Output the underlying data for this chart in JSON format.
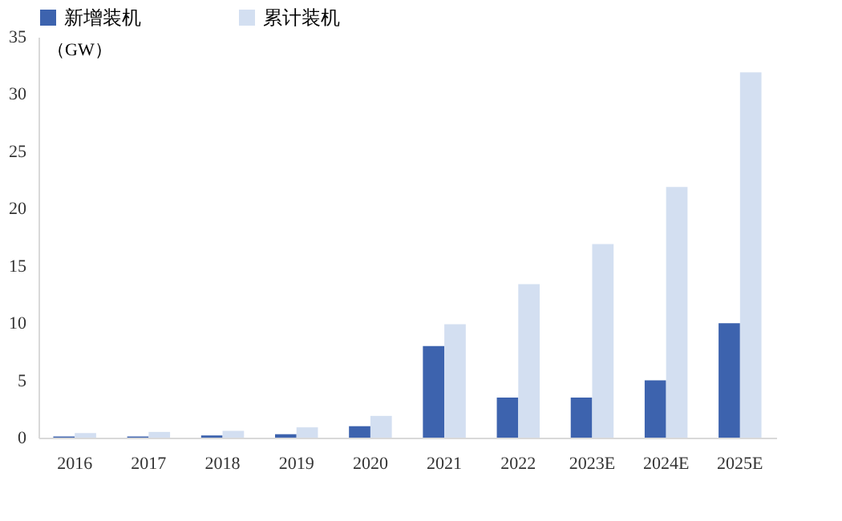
{
  "chart_data": {
    "type": "bar",
    "ylabel": "（GW）",
    "categories": [
      "2016",
      "2017",
      "2018",
      "2019",
      "2020",
      "2021",
      "2022",
      "2023E",
      "2024E",
      "2025E"
    ],
    "series": [
      {
        "name": "新增装机",
        "color": "#3d63ae",
        "values": [
          0.1,
          0.1,
          0.2,
          0.3,
          1.0,
          8,
          3.5,
          3.5,
          5,
          10
        ]
      },
      {
        "name": "累计装机",
        "color": "#d3dff1",
        "values": [
          0.4,
          0.5,
          0.6,
          0.9,
          1.9,
          9.9,
          13.4,
          16.9,
          21.9,
          31.9
        ]
      }
    ],
    "ylim": [
      0,
      35
    ],
    "yticks": [
      0,
      5,
      10,
      15,
      20,
      25,
      30,
      35
    ],
    "grid": false,
    "legend": "top"
  }
}
